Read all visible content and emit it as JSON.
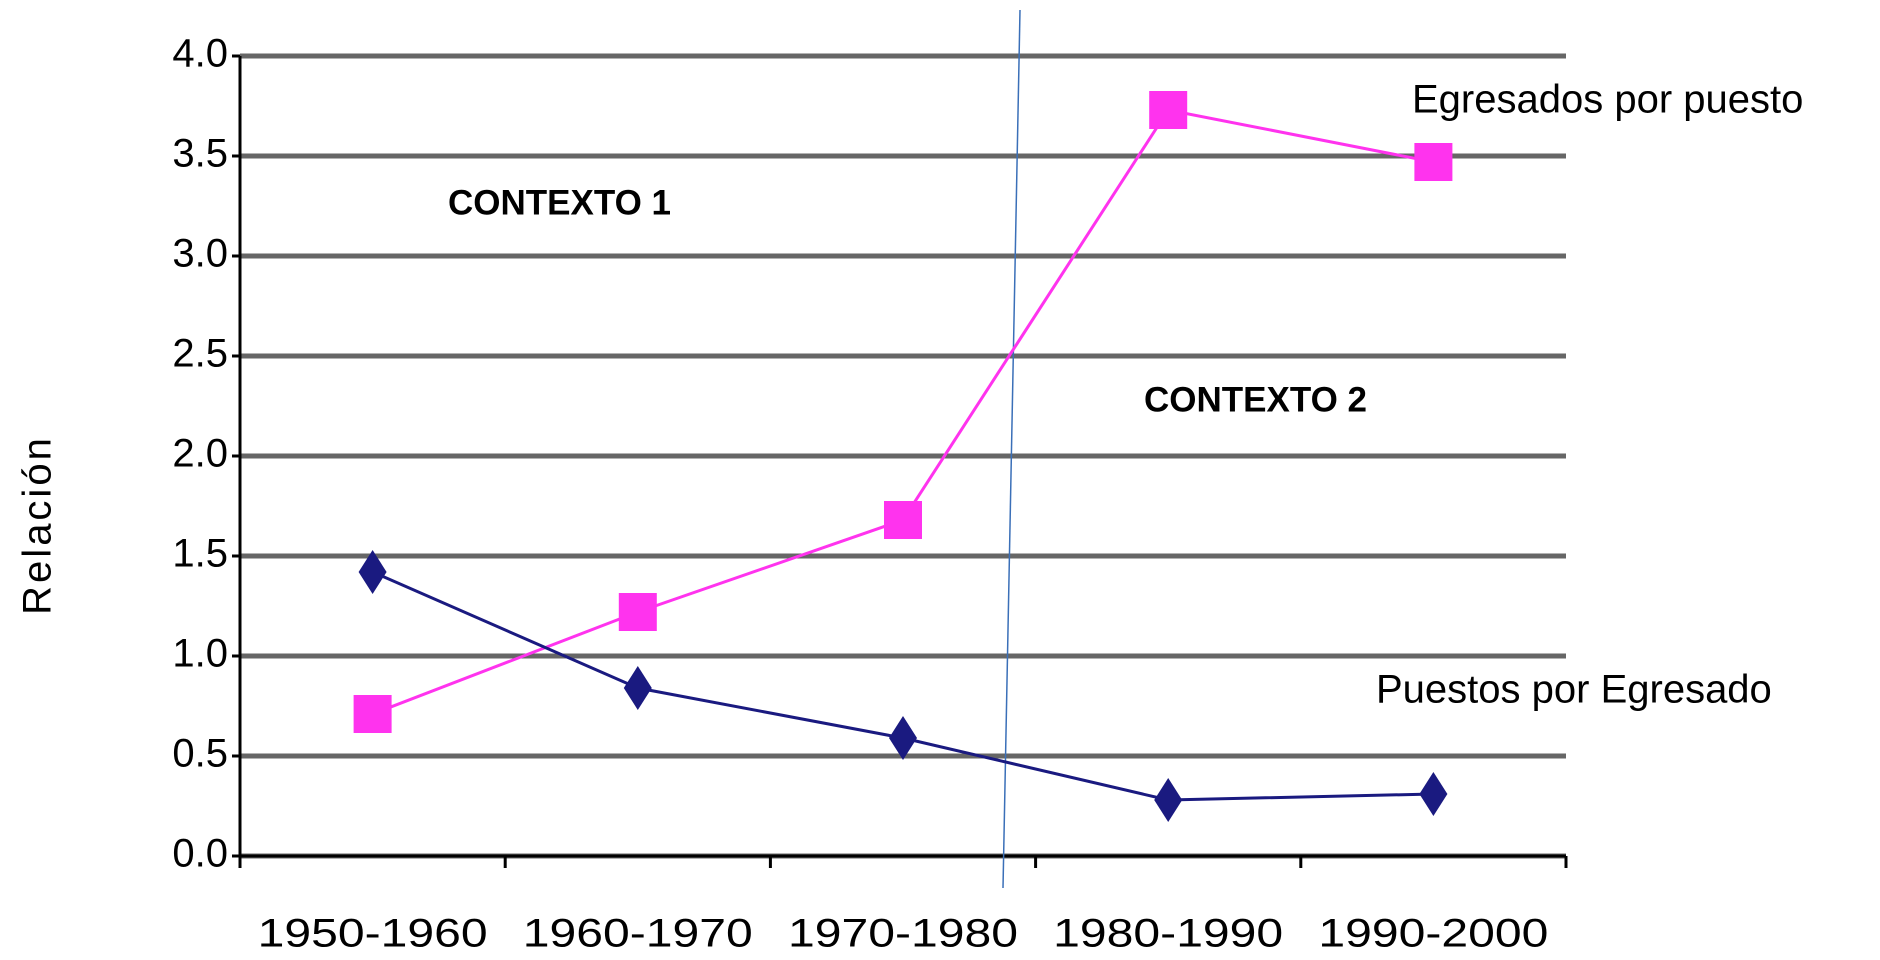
{
  "chart_data": {
    "type": "line",
    "y_label": "Relación",
    "annotations": [
      "CONTEXTO 1",
      "CONTEXTO 2"
    ],
    "categories": [
      "1950-1960",
      "1960-1970",
      "1970-1980",
      "1980-1990",
      "1990-2000"
    ],
    "series": [
      {
        "name": "Egresados por  puesto",
        "color": "#ff33ee",
        "marker": "square",
        "values": [
          0.71,
          1.22,
          1.68,
          3.73,
          3.47
        ]
      },
      {
        "name": "Puestos por Egresado",
        "color": "#1a1a80",
        "marker": "diamond",
        "values": [
          1.42,
          0.84,
          0.59,
          0.28,
          0.31
        ]
      }
    ],
    "ylim": [
      0,
      4
    ],
    "yticks": [
      {
        "value": 0,
        "label": "0.0"
      },
      0.5,
      {
        "value": 1,
        "label": "1.0"
      },
      1.5,
      {
        "value": 2,
        "label": "2.0"
      },
      2.5,
      {
        "value": 3,
        "label": "3.0"
      },
      3.5,
      {
        "value": 4,
        "label": "4.0"
      }
    ],
    "grid": true
  }
}
